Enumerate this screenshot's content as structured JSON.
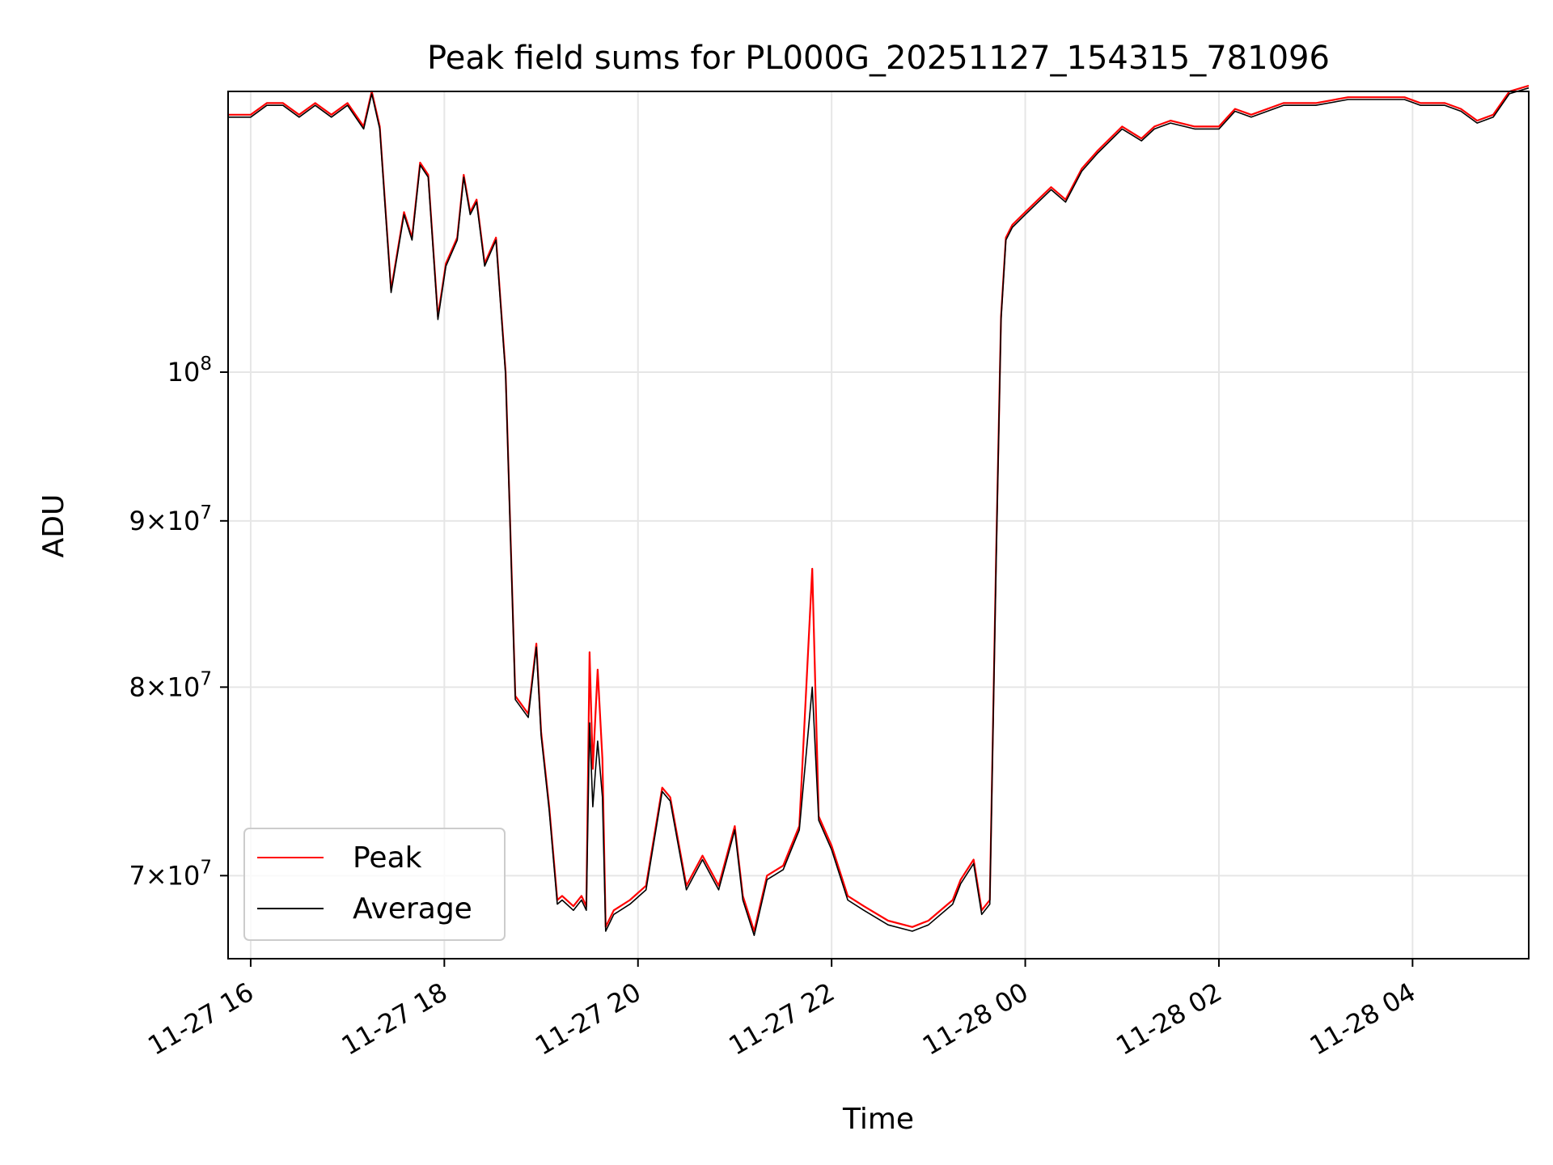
{
  "chart_data": {
    "type": "line",
    "title": "Peak field sums for PL000G_20251127_154315_781096",
    "xlabel": "Time",
    "ylabel": "ADU",
    "yscale": "log",
    "grid": true,
    "legend_position": "lower-left",
    "xlim": [
      "2025-11-27T15:46",
      "2025-11-28T05:12"
    ],
    "ylim": [
      66000000,
      122000000
    ],
    "x_ticks": [
      {
        "t": "2025-11-27T16:00",
        "label": "11-27 16"
      },
      {
        "t": "2025-11-27T18:00",
        "label": "11-27 18"
      },
      {
        "t": "2025-11-27T20:00",
        "label": "11-27 20"
      },
      {
        "t": "2025-11-27T22:00",
        "label": "11-27 22"
      },
      {
        "t": "2025-11-28T00:00",
        "label": "11-28 00"
      },
      {
        "t": "2025-11-28T02:00",
        "label": "11-28 02"
      },
      {
        "t": "2025-11-28T04:00",
        "label": "11-28 04"
      }
    ],
    "y_ticks": [
      {
        "v": 70000000,
        "mant": "7",
        "exp": "7"
      },
      {
        "v": 80000000,
        "mant": "8",
        "exp": "7"
      },
      {
        "v": 90000000,
        "mant": "9",
        "exp": "7"
      },
      {
        "v": 100000000,
        "mant": "",
        "exp": "8"
      }
    ],
    "series": [
      {
        "name": "Peak",
        "color": "#ff0000",
        "x": [
          "2025-11-27T15:46",
          "2025-11-27T16:00",
          "2025-11-27T16:10",
          "2025-11-27T16:20",
          "2025-11-27T16:30",
          "2025-11-27T16:40",
          "2025-11-27T16:50",
          "2025-11-27T17:00",
          "2025-11-27T17:10",
          "2025-11-27T17:15",
          "2025-11-27T17:20",
          "2025-11-27T17:27",
          "2025-11-27T17:35",
          "2025-11-27T17:40",
          "2025-11-27T17:45",
          "2025-11-27T17:50",
          "2025-11-27T17:56",
          "2025-11-27T18:01",
          "2025-11-27T18:08",
          "2025-11-27T18:12",
          "2025-11-27T18:16",
          "2025-11-27T18:20",
          "2025-11-27T18:25",
          "2025-11-27T18:32",
          "2025-11-27T18:38",
          "2025-11-27T18:44",
          "2025-11-27T18:52",
          "2025-11-27T18:57",
          "2025-11-27T19:00",
          "2025-11-27T19:05",
          "2025-11-27T19:10",
          "2025-11-27T19:13",
          "2025-11-27T19:20",
          "2025-11-27T19:25",
          "2025-11-27T19:28",
          "2025-11-27T19:30",
          "2025-11-27T19:32",
          "2025-11-27T19:35",
          "2025-11-27T19:38",
          "2025-11-27T19:40",
          "2025-11-27T19:45",
          "2025-11-27T19:55",
          "2025-11-27T20:05",
          "2025-11-27T20:15",
          "2025-11-27T20:20",
          "2025-11-27T20:30",
          "2025-11-27T20:40",
          "2025-11-27T20:50",
          "2025-11-27T21:00",
          "2025-11-27T21:05",
          "2025-11-27T21:12",
          "2025-11-27T21:20",
          "2025-11-27T21:30",
          "2025-11-27T21:35",
          "2025-11-27T21:40",
          "2025-11-27T21:48",
          "2025-11-27T21:52",
          "2025-11-27T22:00",
          "2025-11-27T22:10",
          "2025-11-27T22:20",
          "2025-11-27T22:35",
          "2025-11-27T22:50",
          "2025-11-27T23:00",
          "2025-11-27T23:15",
          "2025-11-27T23:20",
          "2025-11-27T23:28",
          "2025-11-27T23:33",
          "2025-11-27T23:38",
          "2025-11-27T23:42",
          "2025-11-27T23:45",
          "2025-11-27T23:48",
          "2025-11-27T23:52",
          "2025-11-28T00:00",
          "2025-11-28T00:08",
          "2025-11-28T00:16",
          "2025-11-28T00:25",
          "2025-11-28T00:35",
          "2025-11-28T00:45",
          "2025-11-28T01:00",
          "2025-11-28T01:12",
          "2025-11-28T01:20",
          "2025-11-28T01:30",
          "2025-11-28T01:45",
          "2025-11-28T02:00",
          "2025-11-28T02:10",
          "2025-11-28T02:20",
          "2025-11-28T02:40",
          "2025-11-28T03:00",
          "2025-11-28T03:20",
          "2025-11-28T03:40",
          "2025-11-28T03:55",
          "2025-11-28T04:05",
          "2025-11-28T04:20",
          "2025-11-28T04:30",
          "2025-11-28T04:40",
          "2025-11-28T04:50",
          "2025-11-28T05:00",
          "2025-11-28T05:12"
        ],
        "y": [
          120000000,
          120000000,
          121000000,
          121000000,
          120000000,
          121000000,
          120000000,
          121000000,
          119000000,
          122000000,
          119000000,
          106000000,
          112000000,
          110000000,
          116000000,
          115000000,
          104000000,
          108000000,
          110000000,
          115000000,
          112000000,
          113000000,
          108000000,
          110000000,
          100000000,
          79500000,
          78500000,
          82500000,
          77500000,
          73500000,
          68800000,
          69000000,
          68500000,
          69000000,
          68500000,
          82000000,
          75500000,
          81000000,
          76000000,
          67500000,
          68300000,
          68800000,
          69500000,
          74500000,
          74000000,
          69500000,
          71000000,
          69500000,
          72500000,
          69000000,
          67300000,
          70000000,
          70500000,
          71500000,
          72500000,
          87000000,
          73000000,
          71500000,
          69000000,
          68500000,
          67800000,
          67500000,
          67800000,
          68800000,
          69800000,
          70800000,
          68300000,
          68800000,
          88000000,
          104000000,
          110000000,
          111000000,
          112000000,
          113000000,
          114000000,
          113000000,
          115500000,
          117000000,
          119000000,
          118000000,
          119000000,
          119500000,
          119000000,
          119000000,
          120500000,
          120000000,
          121000000,
          121000000,
          121500000,
          121500000,
          121500000,
          121000000,
          121000000,
          120500000,
          119500000,
          120000000,
          122000000,
          122500000
        ]
      },
      {
        "name": "Average",
        "color": "#000000",
        "x": [
          "2025-11-27T15:46",
          "2025-11-27T16:00",
          "2025-11-27T16:10",
          "2025-11-27T16:20",
          "2025-11-27T16:30",
          "2025-11-27T16:40",
          "2025-11-27T16:50",
          "2025-11-27T17:00",
          "2025-11-27T17:10",
          "2025-11-27T17:15",
          "2025-11-27T17:20",
          "2025-11-27T17:27",
          "2025-11-27T17:35",
          "2025-11-27T17:40",
          "2025-11-27T17:45",
          "2025-11-27T17:50",
          "2025-11-27T17:56",
          "2025-11-27T18:01",
          "2025-11-27T18:08",
          "2025-11-27T18:12",
          "2025-11-27T18:16",
          "2025-11-27T18:20",
          "2025-11-27T18:25",
          "2025-11-27T18:32",
          "2025-11-27T18:38",
          "2025-11-27T18:44",
          "2025-11-27T18:52",
          "2025-11-27T18:57",
          "2025-11-27T19:00",
          "2025-11-27T19:05",
          "2025-11-27T19:10",
          "2025-11-27T19:13",
          "2025-11-27T19:20",
          "2025-11-27T19:25",
          "2025-11-27T19:28",
          "2025-11-27T19:30",
          "2025-11-27T19:32",
          "2025-11-27T19:35",
          "2025-11-27T19:38",
          "2025-11-27T19:40",
          "2025-11-27T19:45",
          "2025-11-27T19:55",
          "2025-11-27T20:05",
          "2025-11-27T20:15",
          "2025-11-27T20:20",
          "2025-11-27T20:30",
          "2025-11-27T20:40",
          "2025-11-27T20:50",
          "2025-11-27T21:00",
          "2025-11-27T21:05",
          "2025-11-27T21:12",
          "2025-11-27T21:20",
          "2025-11-27T21:30",
          "2025-11-27T21:35",
          "2025-11-27T21:40",
          "2025-11-27T21:48",
          "2025-11-27T21:52",
          "2025-11-27T22:00",
          "2025-11-27T22:10",
          "2025-11-27T22:20",
          "2025-11-27T22:35",
          "2025-11-27T22:50",
          "2025-11-27T23:00",
          "2025-11-27T23:15",
          "2025-11-27T23:20",
          "2025-11-27T23:28",
          "2025-11-27T23:33",
          "2025-11-27T23:38",
          "2025-11-27T23:42",
          "2025-11-27T23:45",
          "2025-11-27T23:48",
          "2025-11-27T23:52",
          "2025-11-28T00:00",
          "2025-11-28T00:08",
          "2025-11-28T00:16",
          "2025-11-28T00:25",
          "2025-11-28T00:35",
          "2025-11-28T00:45",
          "2025-11-28T01:00",
          "2025-11-28T01:12",
          "2025-11-28T01:20",
          "2025-11-28T01:30",
          "2025-11-28T01:45",
          "2025-11-28T02:00",
          "2025-11-28T02:10",
          "2025-11-28T02:20",
          "2025-11-28T02:40",
          "2025-11-28T03:00",
          "2025-11-28T03:20",
          "2025-11-28T03:40",
          "2025-11-28T03:55",
          "2025-11-28T04:05",
          "2025-11-28T04:20",
          "2025-11-28T04:30",
          "2025-11-28T04:40",
          "2025-11-28T04:50",
          "2025-11-28T05:00",
          "2025-11-28T05:12"
        ],
        "y": [
          119800000,
          119800000,
          120800000,
          120800000,
          119800000,
          120800000,
          119800000,
          120800000,
          118800000,
          121800000,
          118800000,
          105800000,
          111800000,
          109800000,
          115800000,
          114800000,
          103800000,
          107800000,
          109800000,
          114800000,
          111800000,
          112800000,
          107800000,
          109800000,
          99800000,
          79300000,
          78300000,
          82300000,
          77300000,
          73300000,
          68600000,
          68800000,
          68300000,
          68800000,
          68300000,
          78000000,
          73500000,
          77000000,
          74000000,
          67300000,
          68100000,
          68600000,
          69300000,
          74300000,
          73800000,
          69300000,
          70800000,
          69300000,
          72300000,
          68800000,
          67100000,
          69800000,
          70300000,
          71300000,
          72300000,
          80000000,
          72800000,
          71300000,
          68800000,
          68300000,
          67600000,
          67300000,
          67600000,
          68600000,
          69600000,
          70600000,
          68100000,
          68600000,
          87500000,
          103800000,
          109800000,
          110800000,
          111800000,
          112800000,
          113800000,
          112800000,
          115300000,
          116800000,
          118800000,
          117800000,
          118800000,
          119300000,
          118800000,
          118800000,
          120300000,
          119800000,
          120800000,
          120800000,
          121300000,
          121300000,
          121300000,
          120800000,
          120800000,
          120300000,
          119300000,
          119800000,
          121800000,
          122300000
        ]
      }
    ]
  }
}
